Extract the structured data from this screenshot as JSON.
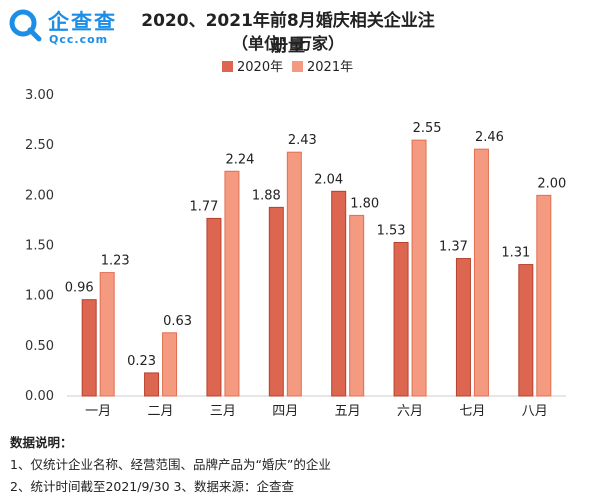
{
  "brand": {
    "name_cn": "企查查",
    "name_en": "Qcc.com"
  },
  "colors": {
    "series_2020": "#dd6650",
    "series_2020_stroke": "#b8402e",
    "series_2021": "#f49a80",
    "series_2021_stroke": "#e36e52",
    "axis": "#cccccc"
  },
  "chart_data": {
    "type": "bar",
    "title": "2020、2021年前8月婚庆相关企业注册量",
    "subtitle": "（单位：万家）",
    "categories": [
      "一月",
      "二月",
      "三月",
      "四月",
      "五月",
      "六月",
      "七月",
      "八月"
    ],
    "series": [
      {
        "name": "2020年",
        "values": [
          0.96,
          0.23,
          1.77,
          1.88,
          2.04,
          1.53,
          1.37,
          1.31
        ]
      },
      {
        "name": "2021年",
        "values": [
          1.23,
          0.63,
          2.24,
          2.43,
          1.8,
          2.55,
          2.46,
          2.0
        ]
      }
    ],
    "ylim": [
      0,
      3
    ],
    "yticks": [
      "0.00",
      "0.50",
      "1.00",
      "1.50",
      "2.00",
      "2.50",
      "3.00"
    ],
    "data_labels": [
      [
        "0.96",
        "0.23",
        "1.77",
        "1.88",
        "2.04",
        "1.53",
        "1.37",
        "1.31"
      ],
      [
        "1.23",
        "0.63",
        "2.24",
        "2.43",
        "1.80",
        "2.55",
        "2.46",
        "2.00"
      ]
    ],
    "legend_position": "top-center",
    "grid": false
  },
  "notes": {
    "heading": "数据说明：",
    "line1": "1、仅统计企业名称、经营范围、品牌产品为“婚庆”的企业",
    "line2": "2、统计时间截至2021/9/30   3、数据来源：企查查"
  }
}
